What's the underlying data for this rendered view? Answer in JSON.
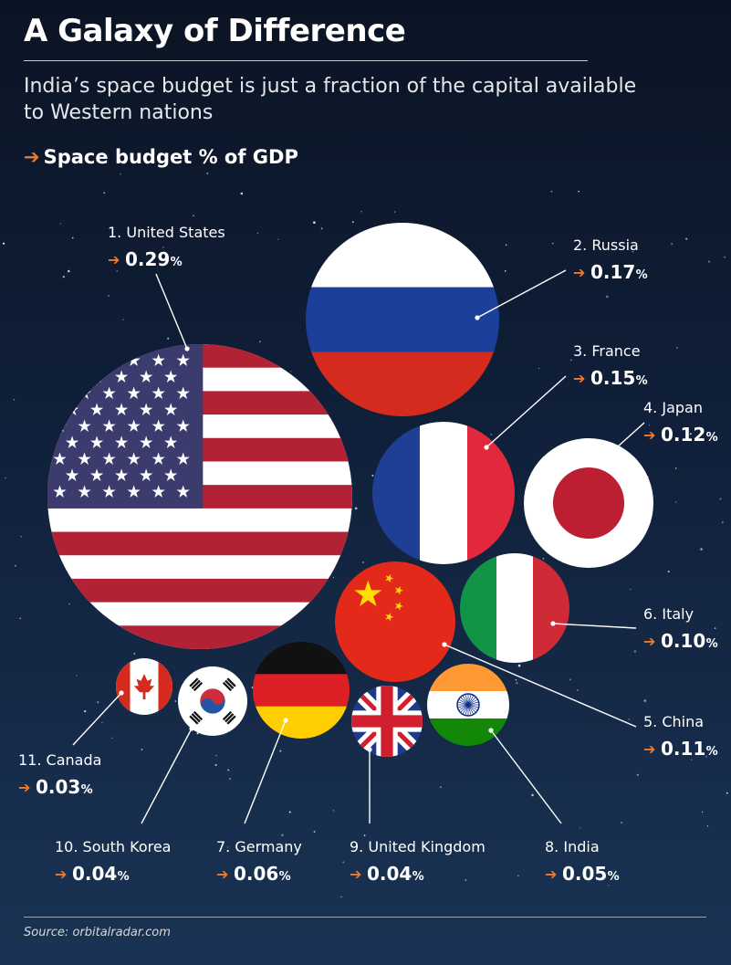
{
  "header": {
    "title": "A Galaxy of Difference",
    "subtitle": "India’s space budget is just a fraction of the capital available to Western nations",
    "metric_arrow": "➔",
    "metric_label": "Space budget % of GDP"
  },
  "footer": {
    "source": "Source: orbitalradar.com"
  },
  "colors": {
    "accent": "#f07a2a",
    "background_top": "#0b1424",
    "background_bottom": "#1a3354"
  },
  "chart_data": {
    "type": "bubble",
    "title": "Space budget % of GDP",
    "unit": "%",
    "points": [
      {
        "rank": 1,
        "label": "1. United States",
        "country": "United States",
        "value": 0.29,
        "display": "0.29",
        "icon": "us-flag-icon"
      },
      {
        "rank": 2,
        "label": "2. Russia",
        "country": "Russia",
        "value": 0.17,
        "display": "0.17",
        "icon": "russia-flag-icon"
      },
      {
        "rank": 3,
        "label": "3. France",
        "country": "France",
        "value": 0.15,
        "display": "0.15",
        "icon": "france-flag-icon"
      },
      {
        "rank": 4,
        "label": "4. Japan",
        "country": "Japan",
        "value": 0.12,
        "display": "0.12",
        "icon": "japan-flag-icon"
      },
      {
        "rank": 5,
        "label": "5. China",
        "country": "China",
        "value": 0.11,
        "display": "0.11",
        "icon": "china-flag-icon"
      },
      {
        "rank": 6,
        "label": "6. Italy",
        "country": "Italy",
        "value": 0.1,
        "display": "0.10",
        "icon": "italy-flag-icon"
      },
      {
        "rank": 7,
        "label": "7. Germany",
        "country": "Germany",
        "value": 0.06,
        "display": "0.06",
        "icon": "germany-flag-icon"
      },
      {
        "rank": 8,
        "label": "8. India",
        "country": "India",
        "value": 0.05,
        "display": "0.05",
        "icon": "india-flag-icon"
      },
      {
        "rank": 9,
        "label": "9. United Kingdom",
        "country": "United Kingdom",
        "value": 0.04,
        "display": "0.04",
        "icon": "uk-flag-icon"
      },
      {
        "rank": 10,
        "label": "10. South Korea",
        "country": "South Korea",
        "value": 0.04,
        "display": "0.04",
        "icon": "south-korea-flag-icon"
      },
      {
        "rank": 11,
        "label": "11. Canada",
        "country": "Canada",
        "value": 0.03,
        "display": "0.03",
        "icon": "canada-flag-icon"
      }
    ]
  }
}
